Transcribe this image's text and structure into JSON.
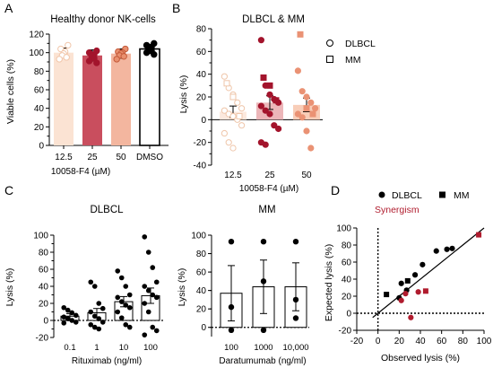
{
  "panels": {
    "A": "A",
    "B": "B",
    "C": "C",
    "D": "D"
  },
  "chart_data": [
    {
      "id": "A",
      "type": "bar",
      "title": "Healthy donor NK-cells",
      "xlabel": "10058-F4 (µM)",
      "ylabel": "Viable cells (%)",
      "ylim": [
        0,
        120
      ],
      "yticks": [
        0,
        20,
        40,
        60,
        80,
        100,
        120
      ],
      "categories": [
        "12.5",
        "25",
        "50",
        "DMSO"
      ],
      "bar_colors": [
        "#fbe3d3",
        "#c94e5e",
        "#f3b69f",
        "#ffffff"
      ],
      "point_colors": [
        "#f1c6aa",
        "#a3142c",
        "#e9906f",
        "#000000"
      ],
      "values": [
        100,
        97,
        99,
        104
      ],
      "errors": [
        5,
        6,
        5,
        5
      ],
      "points": [
        [
          108,
          104,
          101,
          99,
          97,
          95,
          93
        ],
        [
          102,
          100,
          98,
          97,
          96,
          94,
          91,
          89
        ],
        [
          104,
          101,
          100,
          99,
          97,
          96,
          93
        ],
        [
          110,
          108,
          106,
          105,
          104,
          102,
          100,
          98
        ]
      ]
    },
    {
      "id": "B",
      "type": "bar",
      "title": "DLBCL & MM",
      "xlabel": "10058-F4 (µM)",
      "ylabel": "Lysis (%)",
      "ylim": [
        -40,
        80
      ],
      "yticks": [
        -40,
        -20,
        0,
        20,
        40,
        60,
        80
      ],
      "categories": [
        "12.5",
        "25",
        "50"
      ],
      "bar_colors": [
        "#fce9de",
        "#ecb6b9",
        "#f8cdb8"
      ],
      "point_colors": [
        "#efc6aa",
        "#a3142c",
        "#ea9274"
      ],
      "values": [
        7,
        15,
        13
      ],
      "errors": [
        5,
        6,
        6
      ],
      "legend": {
        "entries": [
          "DLBCL",
          "MM"
        ],
        "placement": "top-right",
        "markers": [
          "circle",
          "square"
        ]
      },
      "series": [
        {
          "name": "DLBCL",
          "values": [
            [
              38,
              28,
              22,
              15,
              10,
              8,
              5,
              3,
              0,
              -5,
              -12,
              -20,
              -25
            ],
            [
              70,
              30,
              22,
              18,
              15,
              12,
              8,
              5,
              -5,
              -8,
              -20,
              -22
            ],
            [
              43,
              25,
              20,
              15,
              10,
              5,
              2,
              -10,
              -25
            ]
          ]
        },
        {
          "name": "MM",
          "values": [
            [
              32,
              20,
              3
            ],
            [
              37,
              30,
              17
            ],
            [
              75,
              10,
              5
            ]
          ]
        }
      ]
    },
    {
      "id": "C1",
      "type": "bar",
      "title": "DLBCL",
      "xlabel": "Rituximab (ng/ml)",
      "ylabel": "Lysis (%)",
      "ylim": [
        -20,
        100
      ],
      "yticks": [
        -20,
        0,
        20,
        40,
        60,
        80,
        100
      ],
      "categories": [
        "0.1",
        "1",
        "10",
        "100"
      ],
      "values": [
        5,
        9,
        22,
        29
      ],
      "errors": [
        3,
        5,
        6,
        9
      ],
      "points": [
        [
          15,
          12,
          9,
          6,
          4,
          2,
          0,
          -2,
          -3
        ],
        [
          45,
          40,
          20,
          14,
          10,
          5,
          2,
          -2,
          -5,
          -8,
          -10
        ],
        [
          58,
          50,
          40,
          30,
          27,
          22,
          18,
          15,
          10,
          3,
          -5,
          -8
        ],
        [
          98,
          80,
          62,
          45,
          40,
          35,
          30,
          27,
          20,
          10,
          -8,
          -12,
          -17
        ]
      ]
    },
    {
      "id": "C2",
      "type": "bar",
      "title": "MM",
      "xlabel": "Daratumumab (ng/ml)",
      "ylabel": "Lysis (%)",
      "ylim": [
        -10,
        100
      ],
      "yticks": [
        0,
        20,
        40,
        60,
        80,
        100
      ],
      "categories": [
        "100",
        "1000",
        "10,000"
      ],
      "values": [
        37,
        44,
        44
      ],
      "errors": [
        30,
        29,
        26
      ],
      "points": [
        [
          93,
          22,
          -3
        ],
        [
          93,
          50,
          -3
        ],
        [
          93,
          30,
          10
        ]
      ]
    },
    {
      "id": "D",
      "type": "scatter",
      "xlabel": "Observed lysis (%)",
      "ylabel": "Expected lysis (%)",
      "xlim": [
        -20,
        100
      ],
      "ylim": [
        -20,
        100
      ],
      "xticks": [
        -20,
        0,
        20,
        40,
        60,
        80,
        100
      ],
      "yticks": [
        -20,
        0,
        20,
        40,
        60,
        80,
        100
      ],
      "legend": {
        "entries": [
          "DLBCL",
          "MM"
        ],
        "placement": "top"
      },
      "annotation": "Synergism",
      "annotation_color": "#b01c2e",
      "series": [
        {
          "name": "DLBCL",
          "marker": "circle",
          "color": "#000000",
          "points": [
            [
              20,
              18
            ],
            [
              22,
              35
            ],
            [
              27,
              27
            ],
            [
              35,
              45
            ],
            [
              42,
              57
            ],
            [
              55,
              73
            ],
            [
              65,
              75
            ],
            [
              70,
              76
            ]
          ]
        },
        {
          "name": "MM",
          "marker": "square",
          "color": "#000000",
          "points": [
            [
              8,
              22
            ],
            [
              28,
              38
            ]
          ]
        },
        {
          "name": "",
          "marker": "circle",
          "color": "#b01c2e",
          "points": [
            [
              22,
              15
            ],
            [
              26,
              23
            ],
            [
              31,
              -5
            ],
            [
              38,
              25
            ]
          ]
        },
        {
          "name": "",
          "marker": "square",
          "color": "#b01c2e",
          "points": [
            [
              45,
              26
            ],
            [
              95,
              92
            ]
          ]
        }
      ]
    }
  ]
}
